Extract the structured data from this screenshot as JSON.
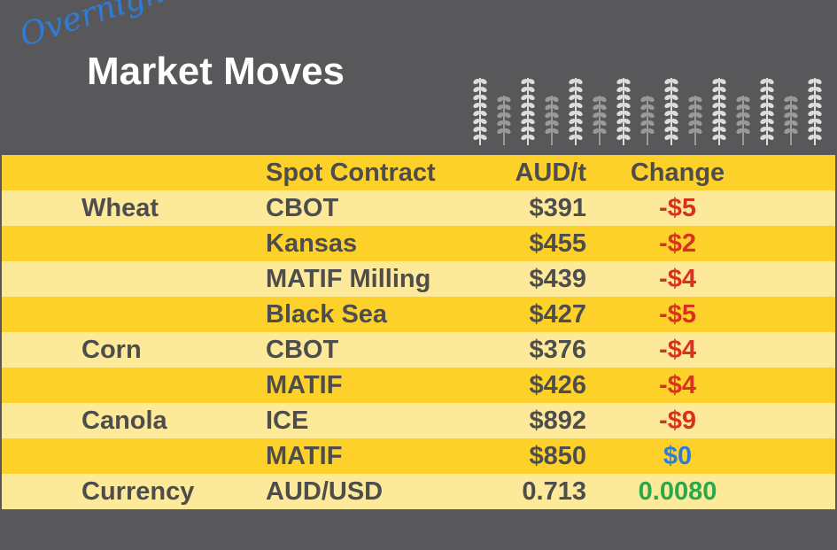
{
  "header": {
    "script": "Overnight",
    "title": "Market Moves"
  },
  "table": {
    "columns": [
      "Spot Contract",
      "AUD/t",
      "Change"
    ],
    "rows": [
      {
        "commodity": "Wheat",
        "contract": "CBOT",
        "price": "$391",
        "change": "-$5",
        "change_color": "#d8321f"
      },
      {
        "contract": "Kansas",
        "price": "$455",
        "change": "-$2",
        "change_color": "#d8321f"
      },
      {
        "contract": "MATIF Milling",
        "price": "$439",
        "change": "-$4",
        "change_color": "#d8321f"
      },
      {
        "contract": "Black Sea",
        "price": "$427",
        "change": "-$5",
        "change_color": "#d8321f"
      },
      {
        "commodity": "Corn",
        "contract": "CBOT",
        "price": "$376",
        "change": "-$4",
        "change_color": "#d8321f"
      },
      {
        "contract": "MATIF",
        "price": "$426",
        "change": "-$4",
        "change_color": "#d8321f"
      },
      {
        "commodity": "Canola",
        "contract": "ICE",
        "price": "$892",
        "change": "-$9",
        "change_color": "#d8321f"
      },
      {
        "contract": "MATIF",
        "price": "$850",
        "change": "$0",
        "change_color": "#2f7bd8"
      },
      {
        "commodity": "Currency",
        "contract": "AUD/USD",
        "price": "0.713",
        "change": "0.0080",
        "change_color": "#2aa84a"
      }
    ]
  }
}
